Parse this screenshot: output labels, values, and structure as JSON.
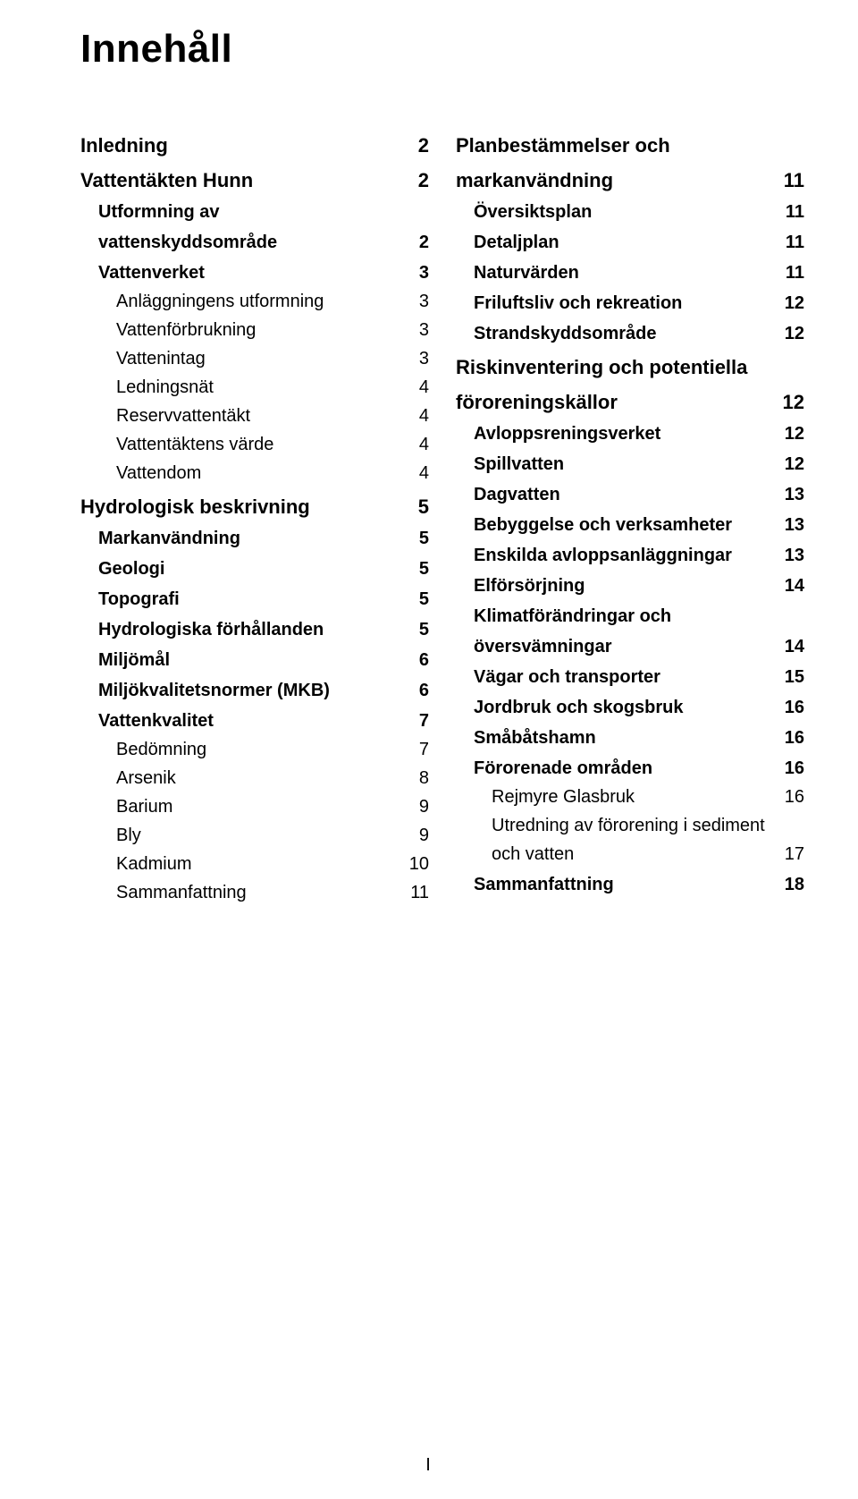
{
  "title": "Innehåll",
  "footer": "I",
  "left": [
    {
      "label": "Inledning",
      "page": "2",
      "level": "h1",
      "indent": 0,
      "name": "toc-inledning"
    },
    {
      "label": "Vattentäkten Hunn",
      "page": "2",
      "level": "h1",
      "indent": 0,
      "name": "toc-vattentakten-hunn"
    },
    {
      "label": "Utformning av",
      "page": "",
      "level": "h2",
      "indent": 1,
      "name": "toc-utformning-av"
    },
    {
      "label": "vattenskyddsområde",
      "page": "2",
      "level": "h2",
      "indent": 1,
      "name": "toc-vattenskyddsomrade"
    },
    {
      "label": "Vattenverket",
      "page": "3",
      "level": "h2",
      "indent": 1,
      "name": "toc-vattenverket"
    },
    {
      "label": "Anläggningens utformning",
      "page": "3",
      "level": "h3",
      "indent": 2,
      "name": "toc-anlaggningens-utformning"
    },
    {
      "label": "Vattenförbrukning",
      "page": "3",
      "level": "h3",
      "indent": 2,
      "name": "toc-vattenforbrukning"
    },
    {
      "label": "Vattenintag",
      "page": "3",
      "level": "h3",
      "indent": 2,
      "name": "toc-vattenintag"
    },
    {
      "label": "Ledningsnät",
      "page": "4",
      "level": "h3",
      "indent": 2,
      "name": "toc-ledningsnat"
    },
    {
      "label": "Reservvattentäkt",
      "page": "4",
      "level": "h3",
      "indent": 2,
      "name": "toc-reservvattentakt"
    },
    {
      "label": "Vattentäktens värde",
      "page": "4",
      "level": "h3",
      "indent": 2,
      "name": "toc-vattentaktens-varde"
    },
    {
      "label": "Vattendom",
      "page": "4",
      "level": "h3",
      "indent": 2,
      "name": "toc-vattendom"
    },
    {
      "label": "Hydrologisk beskrivning",
      "page": "5",
      "level": "h1",
      "indent": 0,
      "name": "toc-hydrologisk-beskrivning"
    },
    {
      "label": "Markanvändning",
      "page": "5",
      "level": "h2",
      "indent": 1,
      "name": "toc-markanvandning"
    },
    {
      "label": "Geologi",
      "page": "5",
      "level": "h2",
      "indent": 1,
      "name": "toc-geologi"
    },
    {
      "label": "Topografi",
      "page": "5",
      "level": "h2",
      "indent": 1,
      "name": "toc-topografi"
    },
    {
      "label": "Hydrologiska förhållanden",
      "page": "5",
      "level": "h2",
      "indent": 1,
      "name": "toc-hydrologiska-forhallanden"
    },
    {
      "label": "Miljömål",
      "page": "6",
      "level": "h2",
      "indent": 1,
      "name": "toc-miljomal"
    },
    {
      "label": "Miljökvalitetsnormer (MKB)",
      "page": "6",
      "level": "h2",
      "indent": 1,
      "name": "toc-miljokvalitetsnormer"
    },
    {
      "label": "Vattenkvalitet",
      "page": "7",
      "level": "h2",
      "indent": 1,
      "name": "toc-vattenkvalitet"
    },
    {
      "label": "Bedömning",
      "page": "7",
      "level": "h3",
      "indent": 2,
      "name": "toc-bedomning"
    },
    {
      "label": "Arsenik",
      "page": "8",
      "level": "h3",
      "indent": 2,
      "name": "toc-arsenik"
    },
    {
      "label": "Barium",
      "page": "9",
      "level": "h3",
      "indent": 2,
      "name": "toc-barium"
    },
    {
      "label": "Bly",
      "page": "9",
      "level": "h3",
      "indent": 2,
      "name": "toc-bly"
    },
    {
      "label": "Kadmium",
      "page": "10",
      "level": "h3",
      "indent": 2,
      "name": "toc-kadmium"
    },
    {
      "label": "Sammanfattning",
      "page": "11",
      "level": "h3",
      "indent": 2,
      "name": "toc-sammanfattning-left"
    }
  ],
  "right": [
    {
      "label": "Planbestämmelser och",
      "page": "",
      "level": "h1",
      "indent": 0,
      "name": "toc-planbestammelser-och"
    },
    {
      "label": "markanvändning",
      "page": "11",
      "level": "h1",
      "indent": 0,
      "name": "toc-markanvandning-plan"
    },
    {
      "label": "Översiktsplan",
      "page": "11",
      "level": "h2",
      "indent": 1,
      "name": "toc-oversiktsplan"
    },
    {
      "label": "Detaljplan",
      "page": "11",
      "level": "h2",
      "indent": 1,
      "name": "toc-detaljplan"
    },
    {
      "label": "Naturvärden",
      "page": "11",
      "level": "h2",
      "indent": 1,
      "name": "toc-naturvarden"
    },
    {
      "label": "Friluftsliv och rekreation",
      "page": "12",
      "level": "h2",
      "indent": 1,
      "name": "toc-friluftsliv"
    },
    {
      "label": "Strandskyddsområde",
      "page": "12",
      "level": "h2",
      "indent": 1,
      "name": "toc-strandskyddsomrade"
    },
    {
      "label": "Riskinventering och potentiella",
      "page": "",
      "level": "h1",
      "indent": 0,
      "name": "toc-riskinventering-line1"
    },
    {
      "label": "föroreningskällor",
      "page": "12",
      "level": "h1",
      "indent": 0,
      "name": "toc-fororeningskallor"
    },
    {
      "label": "Avloppsreningsverket",
      "page": "12",
      "level": "h2",
      "indent": 1,
      "name": "toc-avloppsreningsverket"
    },
    {
      "label": "Spillvatten",
      "page": "12",
      "level": "h2",
      "indent": 1,
      "name": "toc-spillvatten"
    },
    {
      "label": "Dagvatten",
      "page": "13",
      "level": "h2",
      "indent": 1,
      "name": "toc-dagvatten"
    },
    {
      "label": "Bebyggelse och verksamheter",
      "page": "13",
      "level": "h2",
      "indent": 1,
      "name": "toc-bebyggelse"
    },
    {
      "label": "Enskilda avloppsanläggningar",
      "page": "13",
      "level": "h2",
      "indent": 1,
      "name": "toc-enskilda-avlopp"
    },
    {
      "label": "Elförsörjning",
      "page": "14",
      "level": "h2",
      "indent": 1,
      "name": "toc-elforsorning"
    },
    {
      "label": "Klimatförändringar och",
      "page": "",
      "level": "h2",
      "indent": 1,
      "name": "toc-klimat-line1"
    },
    {
      "label": "översvämningar",
      "page": "14",
      "level": "h2",
      "indent": 1,
      "name": "toc-oversvamningar"
    },
    {
      "label": "Vägar och transporter",
      "page": "15",
      "level": "h2",
      "indent": 1,
      "name": "toc-vagar-transporter"
    },
    {
      "label": "Jordbruk och skogsbruk",
      "page": "16",
      "level": "h2",
      "indent": 1,
      "name": "toc-jordbruk-skogsbruk"
    },
    {
      "label": "Småbåtshamn",
      "page": "16",
      "level": "h2",
      "indent": 1,
      "name": "toc-smabatshamn"
    },
    {
      "label": "Förorenade områden",
      "page": "16",
      "level": "h2",
      "indent": 1,
      "name": "toc-fororenade-omraden"
    },
    {
      "label": "Rejmyre Glasbruk",
      "page": "16",
      "level": "h3",
      "indent": 2,
      "name": "toc-rejmyre-glasbruk"
    },
    {
      "label": "Utredning av förorening i sediment",
      "page": "",
      "level": "h3",
      "indent": 2,
      "name": "toc-utredning-line1"
    },
    {
      "label": "och vatten",
      "page": "17",
      "level": "h3",
      "indent": 2,
      "name": "toc-och-vatten"
    },
    {
      "label": "Sammanfattning",
      "page": "18",
      "level": "h2",
      "indent": 1,
      "name": "toc-sammanfattning-right"
    }
  ]
}
